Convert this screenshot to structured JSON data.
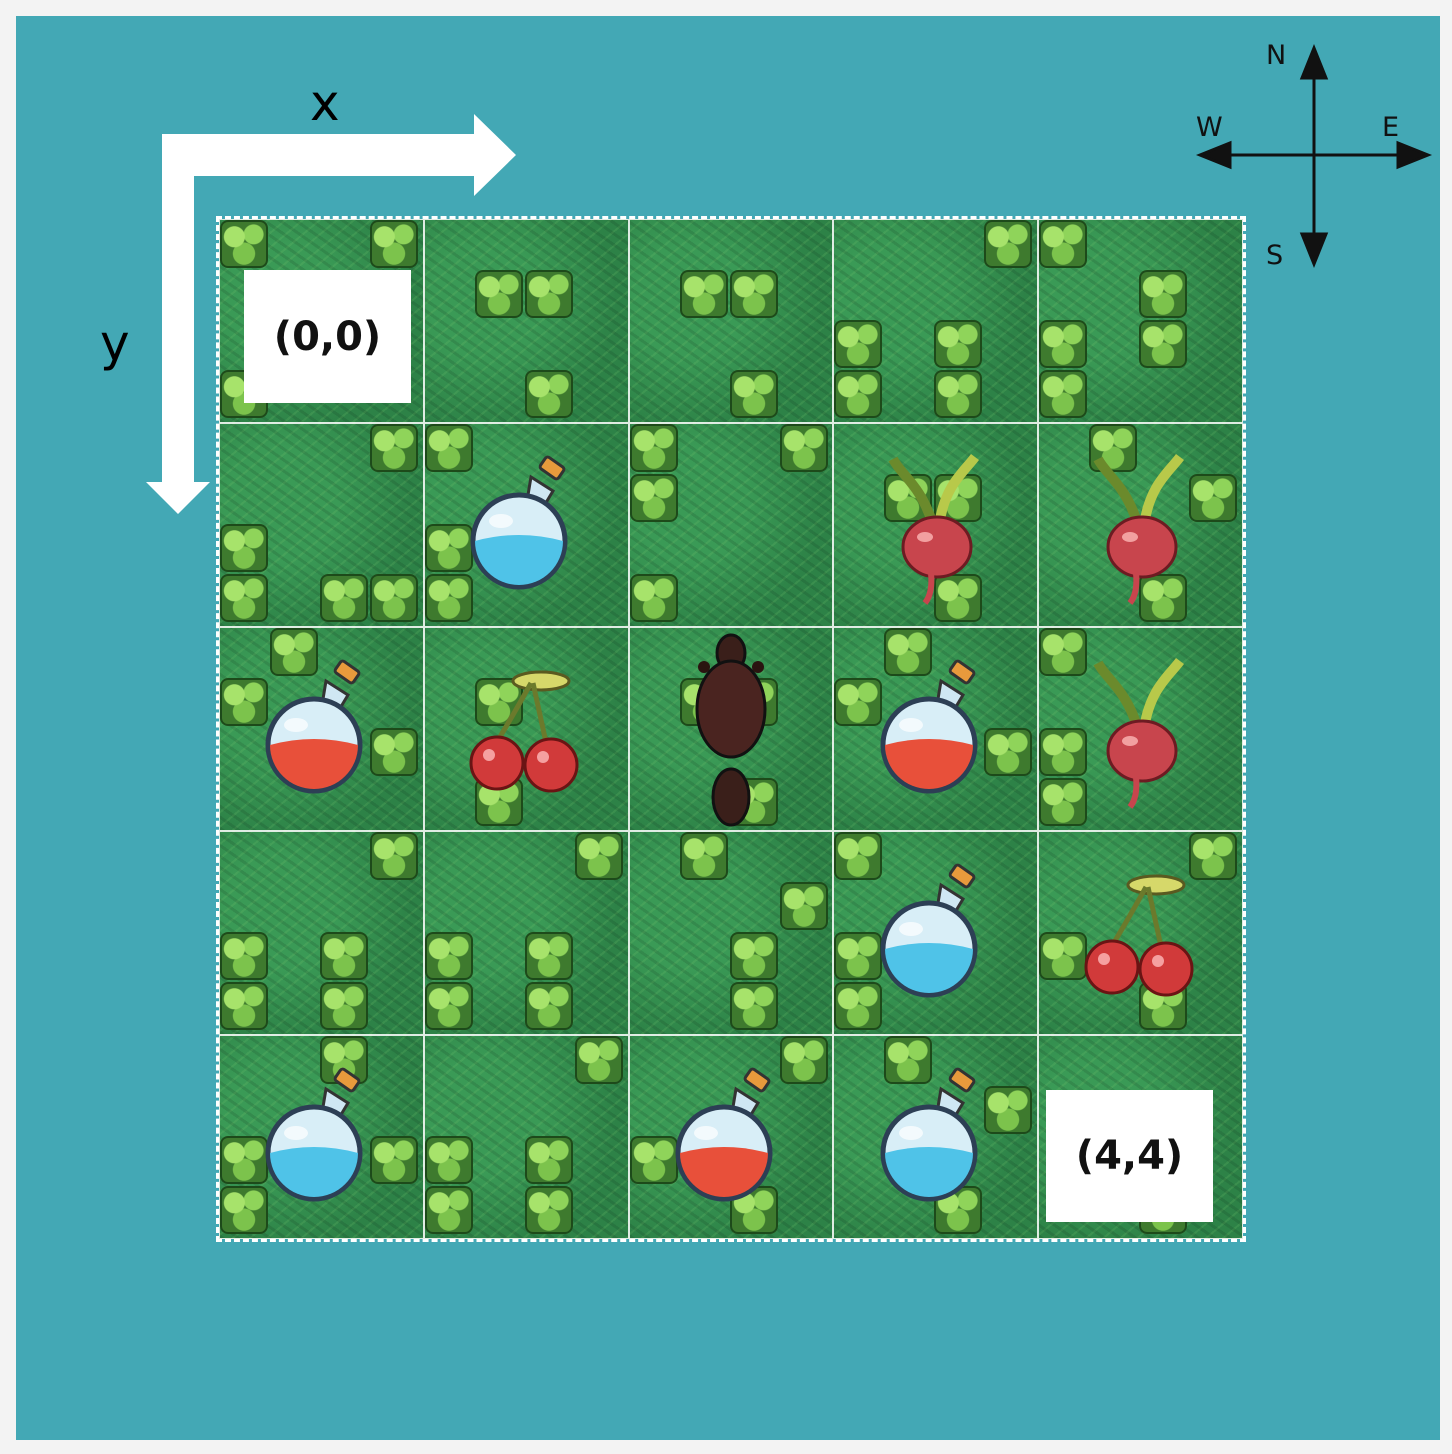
{
  "axes": {
    "x_label": "x",
    "y_label": "y"
  },
  "compass": {
    "north": "N",
    "south": "S",
    "west": "W",
    "east": "E"
  },
  "coordinates": {
    "origin": "(0,0)",
    "end": "(4,4)"
  },
  "grid": {
    "size": 5,
    "rows": [
      [
        {
          "item": "none"
        },
        {
          "item": "none"
        },
        {
          "item": "none"
        },
        {
          "item": "none"
        },
        {
          "item": "none"
        }
      ],
      [
        {
          "item": "none"
        },
        {
          "item": "blue-potion"
        },
        {
          "item": "none"
        },
        {
          "item": "radish"
        },
        {
          "item": "radish"
        }
      ],
      [
        {
          "item": "red-potion"
        },
        {
          "item": "cherries"
        },
        {
          "item": "beaver"
        },
        {
          "item": "red-potion"
        },
        {
          "item": "radish"
        }
      ],
      [
        {
          "item": "none"
        },
        {
          "item": "none"
        },
        {
          "item": "none"
        },
        {
          "item": "blue-potion"
        },
        {
          "item": "cherries"
        }
      ],
      [
        {
          "item": "blue-potion"
        },
        {
          "item": "none"
        },
        {
          "item": "red-potion"
        },
        {
          "item": "blue-potion"
        },
        {
          "item": "none"
        }
      ]
    ]
  },
  "colors": {
    "background": "#43a8b5",
    "grass": "#2f8a4a",
    "arrow": "#ffffff",
    "potion_blue": "#4fc3e8",
    "potion_red": "#e8503a"
  }
}
